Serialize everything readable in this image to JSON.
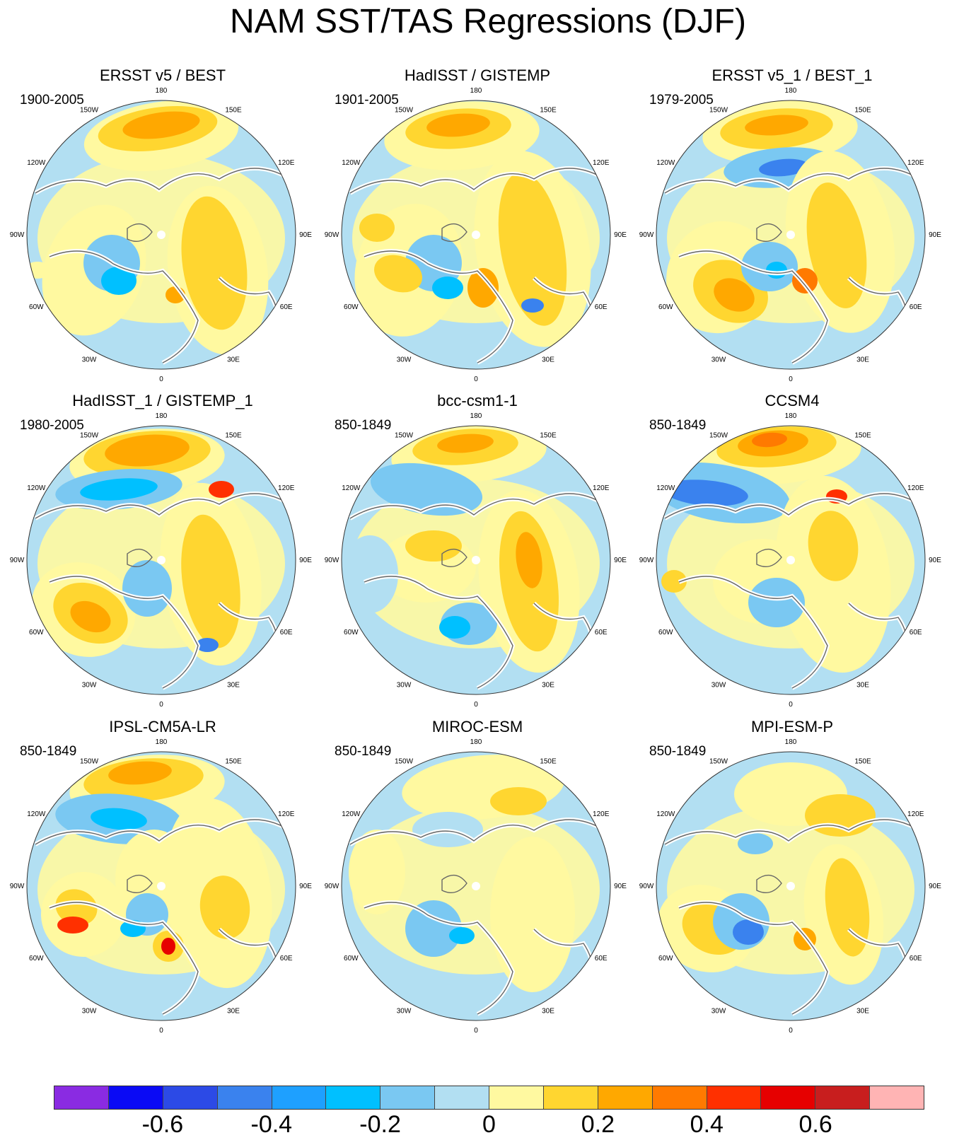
{
  "title": "NAM SST/TAS Regressions (DJF)",
  "longitude_labels": [
    "180",
    "150E",
    "120E",
    "90E",
    "60E",
    "30E",
    "0",
    "30W",
    "60W",
    "90W",
    "120W",
    "150W"
  ],
  "panels": [
    {
      "title": "ERSST v5 / BEST",
      "period": "1900-2005"
    },
    {
      "title": "HadISST / GISTEMP",
      "period": "1901-2005"
    },
    {
      "title": "ERSST v5_1 / BEST_1",
      "period": "1979-2005"
    },
    {
      "title": "HadISST_1 / GISTEMP_1",
      "period": "1980-2005"
    },
    {
      "title": "bcc-csm1-1",
      "period": "850-1849"
    },
    {
      "title": "CCSM4",
      "period": "850-1849"
    },
    {
      "title": "IPSL-CM5A-LR",
      "period": "850-1849"
    },
    {
      "title": "MIROC-ESM",
      "period": "850-1849"
    },
    {
      "title": "MPI-ESM-P",
      "period": "850-1849"
    }
  ],
  "colorbar": {
    "colors": [
      "#8a2be2",
      "#0a0af5",
      "#2c4ae6",
      "#3a82ee",
      "#1ea0ff",
      "#00c0ff",
      "#7ac8f2",
      "#b2dff2",
      "#fff9a0",
      "#ffd630",
      "#ffa800",
      "#ff7a00",
      "#ff3000",
      "#e60000",
      "#c81e1e",
      "#ffb4b4"
    ],
    "labels": [
      "-0.6",
      "-0.4",
      "-0.2",
      "0",
      "0.2",
      "0.4",
      "0.6"
    ]
  }
}
